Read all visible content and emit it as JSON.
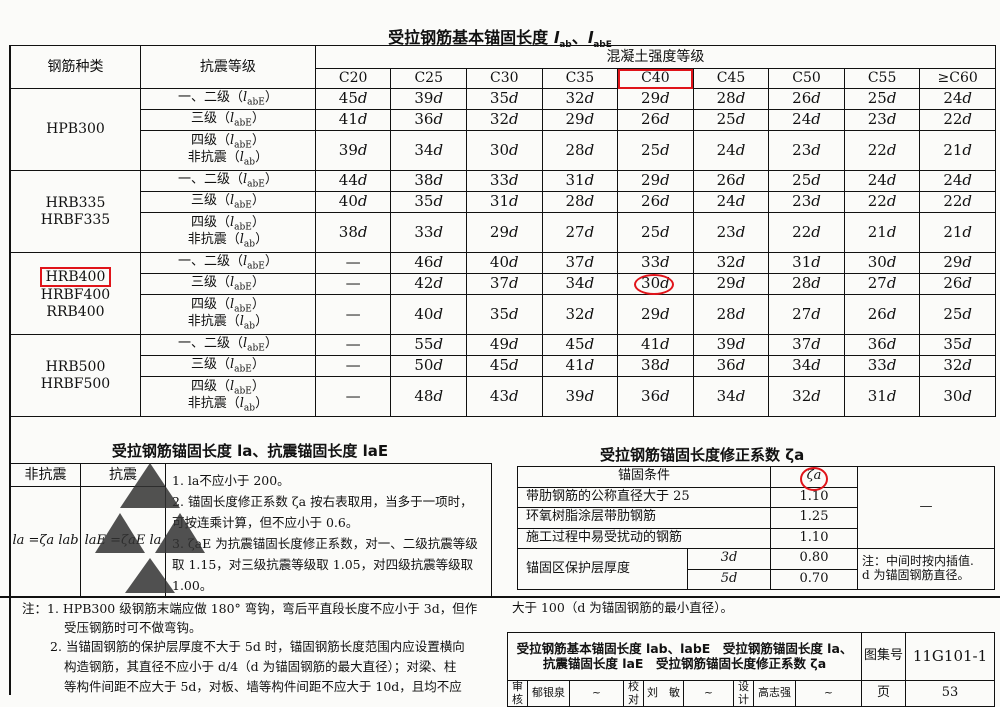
{
  "main": {
    "title": "受拉钢筋基本锚固长度 lab、labE",
    "title_text": "受拉钢筋基本锚固长度 ",
    "title_sym1": "l",
    "title_sub1": "ab",
    "title_sep": "、",
    "title_sym2": "l",
    "title_sub2": "abE",
    "col_steel": "钢筋种类",
    "col_grade": "抗震等级",
    "col_concrete": "混凝土强度等级",
    "concrete": [
      "C20",
      "C25",
      "C30",
      "C35",
      "C40",
      "C45",
      "C50",
      "C55",
      "≥C60"
    ],
    "groups": [
      {
        "names": [
          "HPB300"
        ],
        "rows": [
          {
            "grade": [
              "一、二级（labE）"
            ],
            "values": [
              "45d",
              "39d",
              "35d",
              "32d",
              "29d",
              "28d",
              "26d",
              "25d",
              "24d"
            ]
          },
          {
            "grade": [
              "三级（labE）"
            ],
            "values": [
              "41d",
              "36d",
              "32d",
              "29d",
              "26d",
              "25d",
              "24d",
              "23d",
              "22d"
            ]
          },
          {
            "grade": [
              "四级（labE）",
              "非抗震（lab）"
            ],
            "values": [
              "39d",
              "34d",
              "30d",
              "28d",
              "25d",
              "24d",
              "23d",
              "22d",
              "21d"
            ]
          }
        ]
      },
      {
        "names": [
          "HRB335",
          "HRBF335"
        ],
        "rows": [
          {
            "grade": [
              "一、二级（labE）"
            ],
            "values": [
              "44d",
              "38d",
              "33d",
              "31d",
              "29d",
              "26d",
              "25d",
              "24d",
              "24d"
            ]
          },
          {
            "grade": [
              "三级（labE）"
            ],
            "values": [
              "40d",
              "35d",
              "31d",
              "28d",
              "26d",
              "24d",
              "23d",
              "22d",
              "22d"
            ]
          },
          {
            "grade": [
              "四级（labE）",
              "非抗震（lab）"
            ],
            "values": [
              "38d",
              "33d",
              "29d",
              "27d",
              "25d",
              "23d",
              "22d",
              "21d",
              "21d"
            ]
          }
        ]
      },
      {
        "names": [
          "HRB400",
          "HRBF400",
          "RRB400"
        ],
        "rows": [
          {
            "grade": [
              "一、二级（labE）"
            ],
            "values": [
              "—",
              "46d",
              "40d",
              "37d",
              "33d",
              "32d",
              "31d",
              "30d",
              "29d"
            ]
          },
          {
            "grade": [
              "三级（labE）"
            ],
            "values": [
              "—",
              "42d",
              "37d",
              "34d",
              "30d",
              "29d",
              "28d",
              "27d",
              "26d"
            ]
          },
          {
            "grade": [
              "四级（labE）",
              "非抗震（lab）"
            ],
            "values": [
              "—",
              "40d",
              "35d",
              "32d",
              "29d",
              "28d",
              "27d",
              "26d",
              "25d"
            ]
          }
        ]
      },
      {
        "names": [
          "HRB500",
          "HRBF500"
        ],
        "rows": [
          {
            "grade": [
              "一、二级（labE）"
            ],
            "values": [
              "—",
              "55d",
              "49d",
              "45d",
              "41d",
              "39d",
              "37d",
              "36d",
              "35d"
            ]
          },
          {
            "grade": [
              "三级（labE）"
            ],
            "values": [
              "—",
              "50d",
              "45d",
              "41d",
              "38d",
              "36d",
              "34d",
              "33d",
              "32d"
            ]
          },
          {
            "grade": [
              "四级（labE）",
              "非抗震（lab）"
            ],
            "values": [
              "—",
              "48d",
              "43d",
              "39d",
              "36d",
              "34d",
              "32d",
              "31d",
              "30d"
            ]
          }
        ]
      }
    ],
    "highlight_color": "#e0141a"
  },
  "lower_left": {
    "title": "受拉钢筋锚固长度 la、抗震锚固长度 laE",
    "col_nonseismic": "非抗震",
    "col_seismic": "抗震",
    "formula_nonseismic": "la =ζa lab",
    "formula_seismic": "laE =ζaE la",
    "notes": [
      "1. la不应小于 200。",
      "2. 锚固长度修正系数 ζa 按右表取用，当多于一项时，可按连乘计算，但不应小于 0.6。",
      "3. ζaE 为抗震锚固长度修正系数，对一、二级抗震等级取 1.15，对三级抗震等级取 1.05，对四级抗震等级取 1.00。"
    ]
  },
  "lower_right": {
    "title": "受拉钢筋锚固长度修正系数 ζa",
    "col_condition": "锚固条件",
    "col_value": "ζa",
    "rows": [
      {
        "condition": "带肋钢筋的公称直径大于 25",
        "value": "1.10"
      },
      {
        "condition": "环氧树脂涂层带肋钢筋",
        "value": "1.25"
      },
      {
        "condition": "施工过程中易受扰动的钢筋",
        "value": "1.10"
      }
    ],
    "dash": "—",
    "cover": "锚固区保护层厚度",
    "cover_rows": [
      {
        "t": "3d",
        "value": "0.80"
      },
      {
        "t": "5d",
        "value": "0.70"
      }
    ],
    "remark": [
      "注：中间时按内插值.",
      "d 为锚固钢筋直径。"
    ]
  },
  "footnotes": {
    "n1": "注：1. HPB300 级钢筋末端应做 180° 弯钩，弯后平直段长度不应小于 3d，但作",
    "n1b": "受压钢筋时可不做弯钩。",
    "n2": "2. 当锚固钢筋的保护层厚度不大于 5d 时，锚固钢筋长度范围内应设置横向",
    "n2b": "构造钢筋，其直径不应小于 d/4（d 为锚固钢筋的最大直径）；对梁、柱",
    "n2c": "等构件间距不应大于 5d，对板、墙等构件间距不应大于 10d，且均不应",
    "n2d": "大于 100（d 为锚固钢筋的最小直径）。"
  },
  "title_block": {
    "line1": "受拉钢筋基本锚固长度 lab、labE　受拉钢筋锚固长度 la、",
    "line2": "抗震锚固长度 laE　受拉钢筋锚固长度修正系数 ζa",
    "atlas_label": "图集号",
    "atlas_no": "11G101-1",
    "review": "审核",
    "reviewer": "郁银泉",
    "check": "校对",
    "checker": "刘　敏",
    "design": "设计",
    "designer": "高志强",
    "page_label": "页",
    "page_no": "53"
  }
}
